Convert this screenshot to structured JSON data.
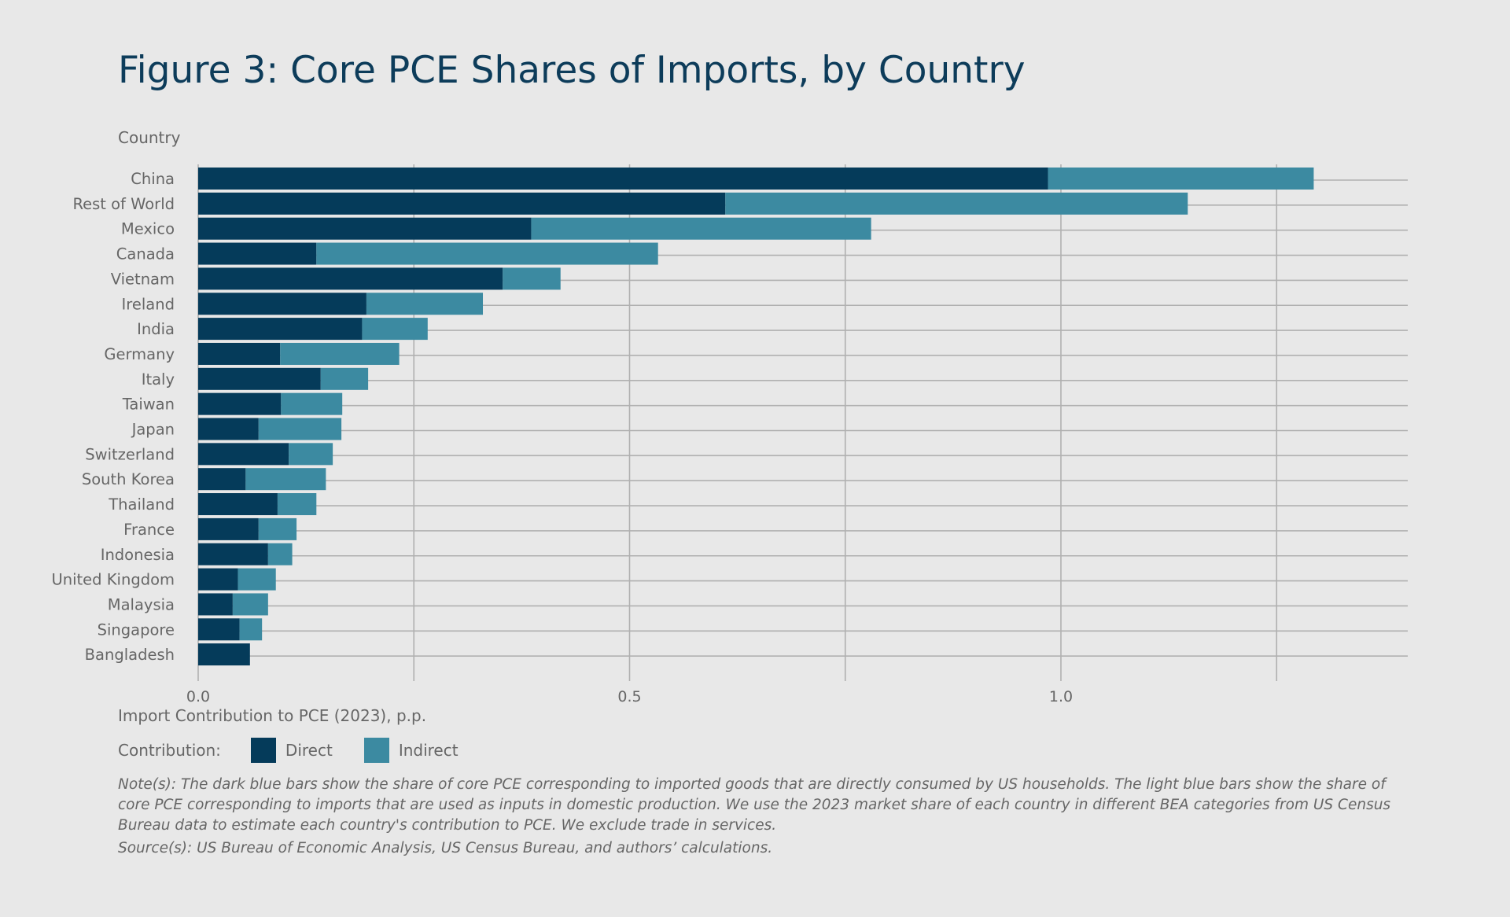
{
  "title": "Figure 3: Core PCE Shares of Imports, by Country",
  "chart_data": {
    "type": "bar",
    "orientation": "horizontal",
    "stacked": true,
    "ylabel": "Country",
    "xlabel": "Import Contribution to PCE (2023), p.p.",
    "xlim": [
      0,
      1.4
    ],
    "xticks": [
      0.0,
      0.25,
      0.5,
      0.75,
      1.0,
      1.25
    ],
    "xtick_labels": [
      "0.0",
      "",
      "0.5",
      "",
      "1.0",
      ""
    ],
    "grid": true,
    "categories": [
      "China",
      "Rest of World",
      "Mexico",
      "Canada",
      "Vietnam",
      "Ireland",
      "India",
      "Germany",
      "Italy",
      "Taiwan",
      "Japan",
      "Switzerland",
      "South Korea",
      "Thailand",
      "France",
      "Indonesia",
      "United Kingdom",
      "Malaysia",
      "Singapore",
      "Bangladesh"
    ],
    "series": [
      {
        "name": "Direct",
        "color": "#053b5a",
        "values": [
          0.985,
          0.611,
          0.386,
          0.137,
          0.353,
          0.195,
          0.19,
          0.095,
          0.142,
          0.096,
          0.07,
          0.105,
          0.055,
          0.092,
          0.07,
          0.081,
          0.046,
          0.04,
          0.048,
          0.06
        ]
      },
      {
        "name": "Indirect",
        "color": "#3c8aa1",
        "values": [
          0.308,
          0.536,
          0.394,
          0.396,
          0.067,
          0.135,
          0.076,
          0.138,
          0.055,
          0.071,
          0.096,
          0.051,
          0.093,
          0.045,
          0.044,
          0.028,
          0.044,
          0.041,
          0.026,
          0.0
        ]
      }
    ],
    "legend": {
      "title": "Contribution:",
      "placement": "bottom-left",
      "items": [
        "Direct",
        "Indirect"
      ]
    }
  },
  "note": "Note(s): The dark blue bars show the share of core PCE corresponding to imported goods that are directly consumed by US households. The light blue bars show the share of core PCE corresponding to imports that are used as inputs in domestic production. We use the 2023 market share of each country in different BEA categories from US Census Bureau data to estimate each country's contribution to PCE. We exclude trade in services.",
  "source": "Source(s): US Bureau of Economic Analysis, US Census Bureau, and authors’ calculations."
}
